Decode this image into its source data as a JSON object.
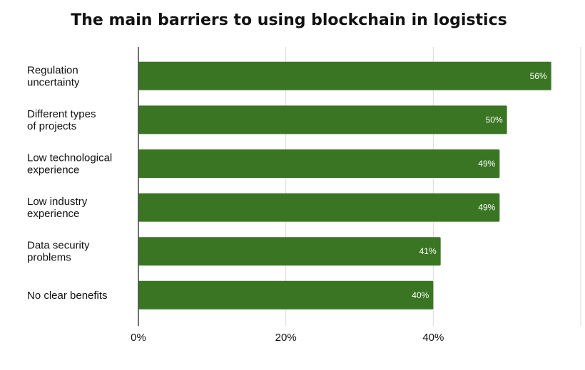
{
  "chart_data": {
    "type": "bar",
    "orientation": "horizontal",
    "title": "The main barriers to using blockchain in logistics",
    "xlabel": "",
    "ylabel": "",
    "categories": [
      [
        "Regulation",
        "uncertainty"
      ],
      [
        "Different types",
        "of projects"
      ],
      [
        "Low technological",
        "experience"
      ],
      [
        "Low industry",
        "experience"
      ],
      [
        "Data security",
        "problems"
      ],
      [
        "No clear benefits"
      ]
    ],
    "values": [
      56,
      50,
      49,
      49,
      41,
      40
    ],
    "value_labels": [
      "56%",
      "50%",
      "49%",
      "49%",
      "41%",
      "40%"
    ],
    "xlim": [
      0,
      60
    ],
    "xticks": [
      0,
      20,
      40,
      60
    ],
    "xtick_labels": [
      "0%",
      "20%",
      "40%",
      ""
    ],
    "grid": "vertical",
    "bar_color": "#3a7523",
    "grid_color": "#d9d9d9",
    "axis_color": "#444444"
  }
}
